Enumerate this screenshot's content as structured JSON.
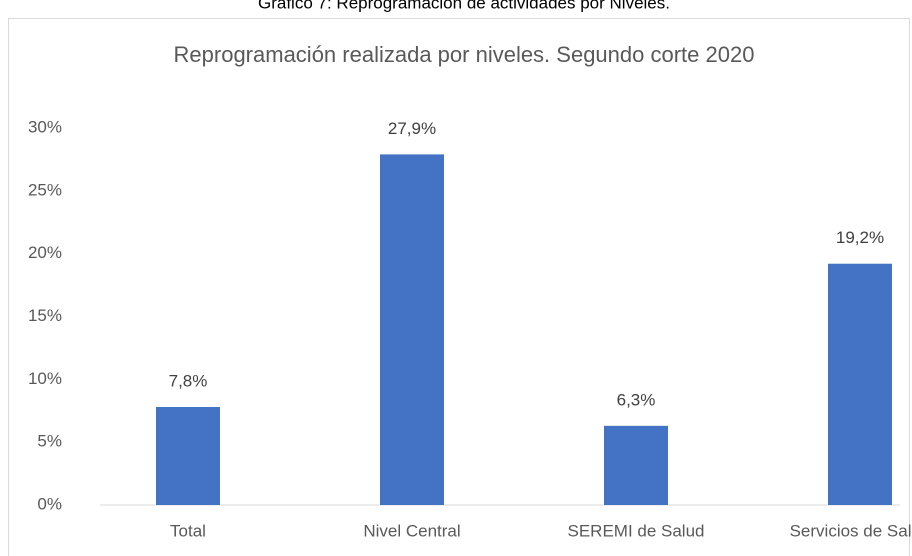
{
  "caption": "Gráfico 7: Reprogramación de actividades por Niveles.",
  "chart_data": {
    "type": "bar",
    "title": "Reprogramación realizada por niveles. Segundo corte 2020",
    "categories": [
      "Total",
      "Nivel Central",
      "SEREMI de Salud",
      "Servicios de Salud"
    ],
    "values": [
      7.8,
      27.9,
      6.3,
      19.2
    ],
    "value_labels": [
      "7,8%",
      "27,9%",
      "6,3%",
      "19,2%"
    ],
    "color": "#4472c4",
    "ylim": [
      0,
      30
    ],
    "yticks": [
      {
        "value": 0,
        "label": "0%"
      },
      {
        "value": 5,
        "label": "5%"
      },
      {
        "value": 10,
        "label": "10%"
      },
      {
        "value": 15,
        "label": "15%"
      },
      {
        "value": 20,
        "label": "20%"
      },
      {
        "value": 25,
        "label": "25%"
      },
      {
        "value": 30,
        "label": "30%"
      }
    ],
    "grid": false
  }
}
